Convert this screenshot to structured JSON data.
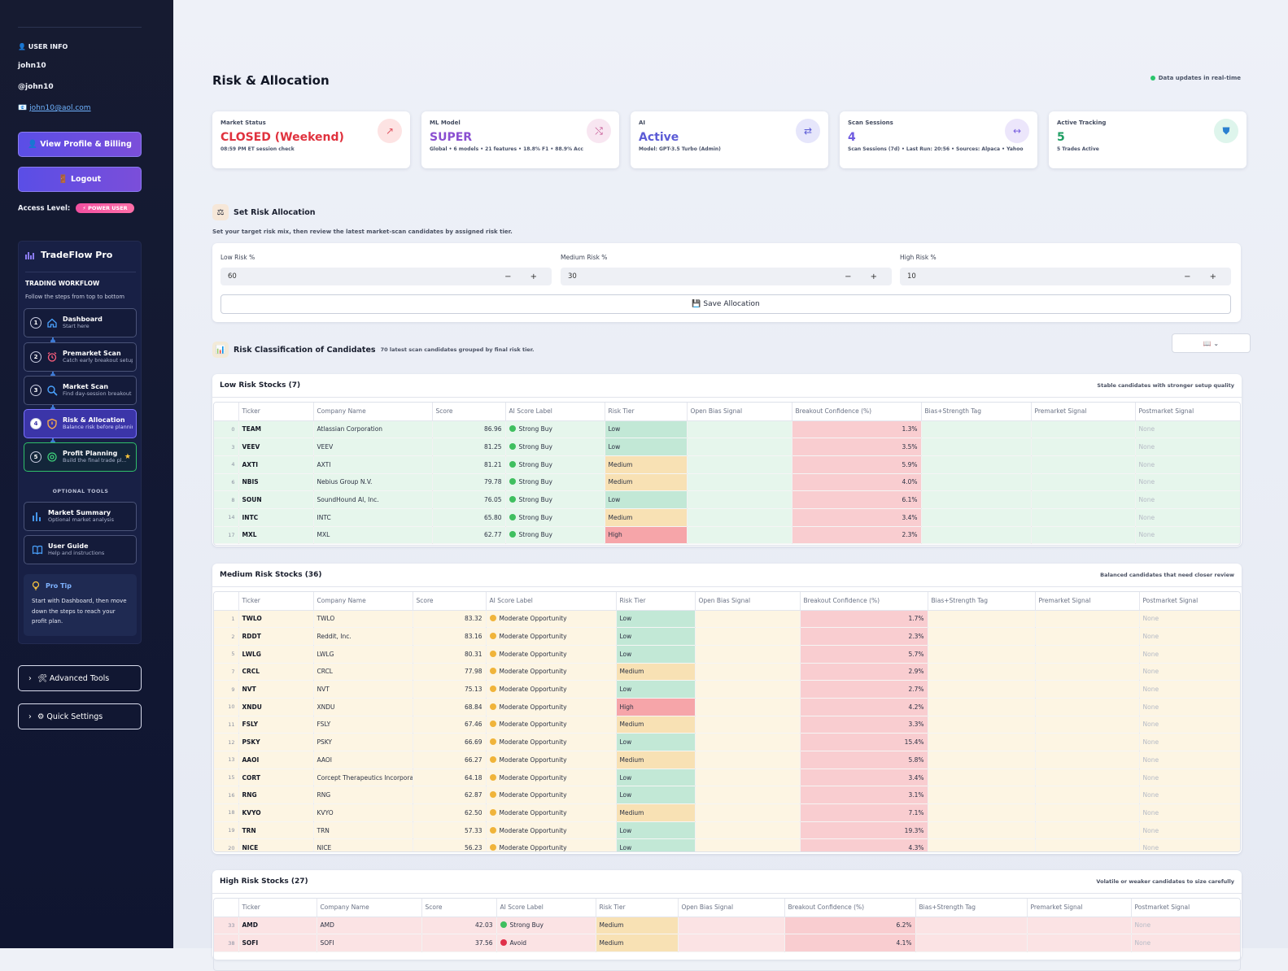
{
  "sidebar": {
    "user_info_title": "👤 USER INFO",
    "name": "john10",
    "handle": "@john10",
    "email_icon": "📧",
    "email": "john10@aol.com",
    "profile_button": "👤 View Profile & Billing",
    "logout_button": "🚪 Logout",
    "access_label": "Access Level:",
    "access_badge": "⚡ POWER USER",
    "brand": "TradeFlow Pro",
    "workflow_title": "TRADING WORKFLOW",
    "workflow_sub": "Follow the steps from top to bottom",
    "steps": [
      {
        "num": "1",
        "title": "Dashboard",
        "sub": "Start here",
        "icon": "home-icon"
      },
      {
        "num": "2",
        "title": "Premarket Scan",
        "sub": "Catch early breakout setups",
        "icon": "alarm-clock-icon"
      },
      {
        "num": "3",
        "title": "Market Scan",
        "sub": "Find day-session breakout ...",
        "icon": "search-icon"
      },
      {
        "num": "4",
        "title": "Risk & Allocation",
        "sub": "Balance risk before planning",
        "icon": "shield-icon"
      },
      {
        "num": "5",
        "title": "Profit Planning",
        "sub": "Build the final trade pl...",
        "icon": "target-icon"
      }
    ],
    "optional_title": "OPTIONAL TOOLS",
    "optional": [
      {
        "title": "Market Summary",
        "sub": "Optional market analysis",
        "icon": "bar-chart-icon"
      },
      {
        "title": "User Guide",
        "sub": "Help and instructions",
        "icon": "book-icon"
      }
    ],
    "pro_tip_title": "Pro Tip",
    "pro_tip_text": "Start with Dashboard, then move down the steps to reach your profit plan.",
    "advanced_tools": "🛠 Advanced Tools",
    "quick_settings": "⚙ Quick Settings"
  },
  "main": {
    "title": "Risk & Allocation",
    "realtime": "Data updates in real-time",
    "cards": [
      {
        "label": "Market Status",
        "value": "CLOSED (Weekend)",
        "sub": "08:59 PM ET session check",
        "color": "#e0323e",
        "icon": "↗",
        "icon_name": "trend-arrow-icon",
        "icon_bg": "#fde3e3",
        "icon_color": "#e05260"
      },
      {
        "label": "ML Model",
        "value": "SUPER",
        "sub": "Global • 6 models • 21 features • 18.8% F1 • 88.9% Acc",
        "color": "#8a4fd1",
        "icon": "⤭",
        "icon_name": "crossed-arrows-icon",
        "icon_bg": "#f8e6f1",
        "icon_color": "#c04a8a"
      },
      {
        "label": "AI",
        "value": "Active",
        "sub": "Model: GPT-3.5 Turbo (Admin)",
        "color": "#5b5bd6",
        "icon": "⇄",
        "icon_name": "exchange-icon",
        "icon_bg": "#e6e6fb",
        "icon_color": "#5b5bd6"
      },
      {
        "label": "Scan Sessions",
        "value": "4",
        "sub": "Scan Sessions (7d) • Last Run: 20:56 • Sources: Alpaca • Yahoo",
        "color": "#6f5be0",
        "icon": "↔",
        "icon_name": "two-way-arrow-icon",
        "icon_bg": "#ece6fb",
        "icon_color": "#7a62e0"
      },
      {
        "label": "Active Tracking",
        "value": "5",
        "sub": "5 Trades Active",
        "color": "#1e9e63",
        "icon": "⛊",
        "icon_name": "shield-icon",
        "icon_bg": "#def5ec",
        "icon_color": "#2a80d0"
      }
    ],
    "alloc_title": "Set Risk Allocation",
    "alloc_desc": "Set your target risk mix, then review the latest market-scan candidates by assigned risk tier.",
    "fields": [
      {
        "label": "Low Risk %",
        "value": "60"
      },
      {
        "label": "Medium Risk %",
        "value": "30"
      },
      {
        "label": "High Risk %",
        "value": "10"
      }
    ],
    "stepper": "− +",
    "save_button": "💾 Save Allocation",
    "class_title": "Risk Classification of Candidates",
    "class_sub": "70 latest scan candidates grouped by final risk tier.",
    "view_toggle": "📖 ⌄",
    "columns": [
      "",
      "Ticker",
      "Company Name",
      "Score",
      "AI Score Label",
      "Risk Tier",
      "Open Bias Signal",
      "Breakout Confidence (%)",
      "Bias+Strength Tag",
      "Premarket Signal",
      "Postmarket Signal"
    ],
    "low": {
      "title": "Low Risk Stocks (7)",
      "subtitle": "Stable candidates with stronger setup quality",
      "row_bg": "#e6f6ec",
      "rows": [
        [
          "0",
          "TEAM",
          "Atlassian Corporation",
          "86.96",
          "Strong Buy",
          "Low",
          "",
          "1.3%",
          "",
          "",
          "None"
        ],
        [
          "3",
          "VEEV",
          "VEEV",
          "81.25",
          "Strong Buy",
          "Low",
          "",
          "3.5%",
          "",
          "",
          "None"
        ],
        [
          "4",
          "AXTI",
          "AXTI",
          "81.21",
          "Strong Buy",
          "Medium",
          "",
          "5.9%",
          "",
          "",
          "None"
        ],
        [
          "6",
          "NBIS",
          "Nebius Group N.V.",
          "79.78",
          "Strong Buy",
          "Medium",
          "",
          "4.0%",
          "",
          "",
          "None"
        ],
        [
          "8",
          "SOUN",
          "SoundHound AI, Inc.",
          "76.05",
          "Strong Buy",
          "Low",
          "",
          "6.1%",
          "",
          "",
          "None"
        ],
        [
          "14",
          "INTC",
          "INTC",
          "65.80",
          "Strong Buy",
          "Medium",
          "",
          "3.4%",
          "",
          "",
          "None"
        ],
        [
          "17",
          "MXL",
          "MXL",
          "62.77",
          "Strong Buy",
          "High",
          "",
          "2.3%",
          "",
          "",
          "None"
        ]
      ]
    },
    "medium": {
      "title": "Medium Risk Stocks (36)",
      "subtitle": "Balanced candidates that need closer review",
      "row_bg": "#fdf5e3",
      "rows": [
        [
          "1",
          "TWLO",
          "TWLO",
          "83.32",
          "Moderate Opportunity",
          "Low",
          "",
          "1.7%",
          "",
          "",
          "None"
        ],
        [
          "2",
          "RDDT",
          "Reddit, Inc.",
          "83.16",
          "Moderate Opportunity",
          "Low",
          "",
          "2.3%",
          "",
          "",
          "None"
        ],
        [
          "5",
          "LWLG",
          "LWLG",
          "80.31",
          "Moderate Opportunity",
          "Low",
          "",
          "5.7%",
          "",
          "",
          "None"
        ],
        [
          "7",
          "CRCL",
          "CRCL",
          "77.98",
          "Moderate Opportunity",
          "Medium",
          "",
          "2.9%",
          "",
          "",
          "None"
        ],
        [
          "9",
          "NVT",
          "NVT",
          "75.13",
          "Moderate Opportunity",
          "Low",
          "",
          "2.7%",
          "",
          "",
          "None"
        ],
        [
          "10",
          "XNDU",
          "XNDU",
          "68.84",
          "Moderate Opportunity",
          "High",
          "",
          "4.2%",
          "",
          "",
          "None"
        ],
        [
          "11",
          "FSLY",
          "FSLY",
          "67.46",
          "Moderate Opportunity",
          "Medium",
          "",
          "3.3%",
          "",
          "",
          "None"
        ],
        [
          "12",
          "PSKY",
          "PSKY",
          "66.69",
          "Moderate Opportunity",
          "Low",
          "",
          "15.4%",
          "",
          "",
          "None"
        ],
        [
          "13",
          "AAOI",
          "AAOI",
          "66.27",
          "Moderate Opportunity",
          "Medium",
          "",
          "5.8%",
          "",
          "",
          "None"
        ],
        [
          "15",
          "CORT",
          "Corcept Therapeutics Incorporat",
          "64.18",
          "Moderate Opportunity",
          "Low",
          "",
          "3.4%",
          "",
          "",
          "None"
        ],
        [
          "16",
          "RNG",
          "RNG",
          "62.87",
          "Moderate Opportunity",
          "Low",
          "",
          "3.1%",
          "",
          "",
          "None"
        ],
        [
          "18",
          "KVYO",
          "KVYO",
          "62.50",
          "Moderate Opportunity",
          "Medium",
          "",
          "7.1%",
          "",
          "",
          "None"
        ],
        [
          "19",
          "TRN",
          "TRN",
          "57.33",
          "Moderate Opportunity",
          "Low",
          "",
          "19.3%",
          "",
          "",
          "None"
        ],
        [
          "20",
          "NICE",
          "NICE",
          "56.23",
          "Moderate Opportunity",
          "Low",
          "",
          "4.3%",
          "",
          "",
          "None"
        ]
      ]
    },
    "high": {
      "title": "High Risk Stocks (27)",
      "subtitle": "Volatile or weaker candidates to size carefully",
      "row_bg": "#fbe3e4",
      "rows": [
        [
          "33",
          "AMD",
          "AMD",
          "42.03",
          "Strong Buy",
          "Medium",
          "",
          "6.2%",
          "",
          "",
          "None"
        ],
        [
          "38",
          "SOFI",
          "SOFI",
          "37.56",
          "Avoid",
          "Medium",
          "",
          "4.1%",
          "",
          "",
          "None"
        ]
      ]
    },
    "label_colors": {
      "Strong Buy": "#3fbf5f",
      "Moderate Opportunity": "#f0b43a",
      "Avoid": "#e0304a"
    }
  }
}
